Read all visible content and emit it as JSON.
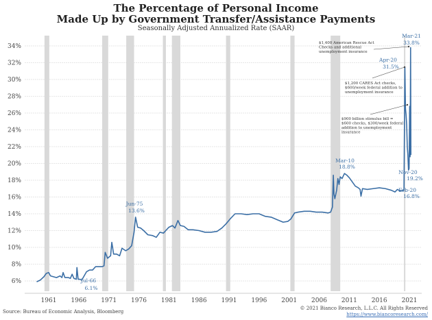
{
  "chart_data": {
    "type": "line",
    "title": "The Percentage of Personal Income",
    "title_line2": "Made Up by Government Transfer/Assistance Payments",
    "subtitle": "Seasonally Adjusted Annualized Rate (SAAR)",
    "xlabel": "",
    "ylabel": "",
    "xlim": [
      1959,
      2021.5
    ],
    "ylim": [
      5,
      35
    ],
    "x_ticks": [
      "1961",
      "1966",
      "1971",
      "1976",
      "1981",
      "1986",
      "1991",
      "1996",
      "2001",
      "2006",
      "2011",
      "2016",
      "2021"
    ],
    "y_ticks": [
      "6%",
      "8%",
      "10%",
      "12%",
      "14%",
      "16%",
      "18%",
      "20%",
      "22%",
      "24%",
      "26%",
      "28%",
      "30%",
      "32%",
      "34%"
    ],
    "grid": true,
    "line_color": "#3a6ea5",
    "recession_color": "#d9d9d9",
    "recessions": [
      [
        1960.3,
        1961.1
      ],
      [
        1969.9,
        1970.9
      ],
      [
        1973.9,
        1975.2
      ],
      [
        1980.0,
        1980.5
      ],
      [
        1981.5,
        1982.9
      ],
      [
        1990.5,
        1991.2
      ],
      [
        2001.2,
        2001.9
      ],
      [
        2007.9,
        2009.5
      ],
      [
        2020.1,
        2020.3
      ]
    ],
    "series": [
      {
        "x": [
          1959.0,
          1959.6,
          1960.2,
          1960.6,
          1961.0,
          1961.3,
          1961.8,
          1962.3,
          1962.9,
          1963.2,
          1963.4,
          1963.7,
          1964.3,
          1964.6,
          1964.9,
          1965.2,
          1965.6,
          1965.7,
          1965.9,
          1966.2,
          1966.5,
          1966.9,
          1967.3,
          1967.8,
          1968.3,
          1968.8,
          1969.3,
          1969.9,
          1970.2,
          1970.4,
          1970.8,
          1971.3,
          1971.5,
          1971.8,
          1972.3,
          1972.8,
          1973.2,
          1973.8,
          1974.3,
          1974.8,
          1975.2,
          1975.45,
          1975.8,
          1976.3,
          1976.8,
          1977.5,
          1978.3,
          1978.9,
          1979.5,
          1980.1,
          1980.6,
          1981.0,
          1981.6,
          1982.0,
          1982.5,
          1982.9,
          1983.5,
          1984.2,
          1985.0,
          1986.0,
          1987.0,
          1988.0,
          1989.0,
          1989.8,
          1990.5,
          1991.2,
          1992.0,
          1993.0,
          1994.0,
          1995.0,
          1996.0,
          1997.0,
          1998.0,
          1999.0,
          2000.0,
          2000.8,
          2001.3,
          2001.9,
          2002.5,
          2003.5,
          2004.5,
          2005.5,
          2006.5,
          2007.5,
          2007.9,
          2008.2,
          2008.35,
          2008.45,
          2008.6,
          2008.9,
          2009.1,
          2009.3,
          2009.5,
          2009.8,
          2010.2,
          2010.6,
          2011.0,
          2011.5,
          2012.0,
          2012.5,
          2012.8,
          2012.95,
          2013.2,
          2014.0,
          2015.0,
          2016.0,
          2017.0,
          2018.0,
          2018.6,
          2019.0,
          2019.5,
          2020.1,
          2020.25,
          2020.35,
          2020.45,
          2020.55,
          2020.65,
          2020.75,
          2020.85,
          2020.95,
          2021.05,
          2021.12,
          2021.2,
          2021.25
        ],
        "y": [
          5.9,
          6.1,
          6.5,
          6.9,
          7.0,
          6.6,
          6.5,
          6.4,
          6.6,
          6.4,
          7.0,
          6.4,
          6.4,
          6.3,
          6.8,
          6.3,
          6.2,
          7.6,
          6.2,
          6.2,
          6.1,
          6.6,
          7.1,
          7.3,
          7.3,
          7.7,
          7.7,
          7.7,
          7.8,
          9.4,
          8.7,
          9.0,
          10.6,
          9.2,
          9.2,
          9.0,
          9.9,
          9.6,
          9.8,
          10.2,
          11.8,
          13.6,
          12.4,
          12.3,
          12.0,
          11.5,
          11.4,
          11.2,
          11.8,
          11.7,
          12.1,
          12.4,
          12.6,
          12.3,
          13.2,
          12.6,
          12.5,
          12.1,
          12.1,
          12.0,
          11.8,
          11.8,
          11.9,
          12.3,
          12.8,
          13.4,
          14.0,
          14.0,
          13.9,
          14.0,
          14.0,
          13.7,
          13.6,
          13.3,
          13.0,
          13.1,
          13.4,
          14.1,
          14.2,
          14.3,
          14.3,
          14.2,
          14.2,
          14.1,
          14.2,
          14.8,
          18.6,
          16.4,
          15.8,
          16.8,
          18.2,
          17.5,
          18.4,
          18.2,
          18.8,
          18.6,
          18.3,
          17.8,
          17.3,
          17.1,
          16.9,
          16.1,
          17.0,
          16.9,
          17.0,
          17.1,
          17.0,
          16.8,
          16.6,
          16.9,
          16.7,
          16.8,
          31.5,
          26.5,
          25.8,
          24.6,
          22.0,
          21.0,
          19.2,
          19.4,
          26.8,
          20.8,
          33.8,
          21.0
        ]
      }
    ],
    "annotations": [
      {
        "label": "Jul-66",
        "value": "6.1%"
      },
      {
        "label": "Jun-75",
        "value": "13.6%"
      },
      {
        "label": "Mar-10",
        "value": "18.8%"
      },
      {
        "label": "Feb-20",
        "value": "16.8%"
      },
      {
        "label": "Nov-20",
        "value": "19.2%"
      },
      {
        "label": "Apr-20",
        "value": "31.5%"
      },
      {
        "label": "Mar-21",
        "value": "33.8%"
      }
    ],
    "callouts": [
      [
        "$1,400 American Rescue Act",
        "Checks and additional",
        "unemployment insurance"
      ],
      [
        "$1,200 CARES Act checks,",
        "$600/week federal addition to",
        "unemployment insurance"
      ],
      [
        "$900 billion stimulus bill =",
        "$600 checks, $300/week federal",
        "addition to unemployment",
        "insurance"
      ]
    ]
  },
  "footer": {
    "source": "Source: Bureau of Economic Analysis, Bloomberg",
    "copyright": "© 2021 Bianco Research, L.L.C. All Rights Reserved",
    "url": "https://www.biancoresearch.com/"
  }
}
